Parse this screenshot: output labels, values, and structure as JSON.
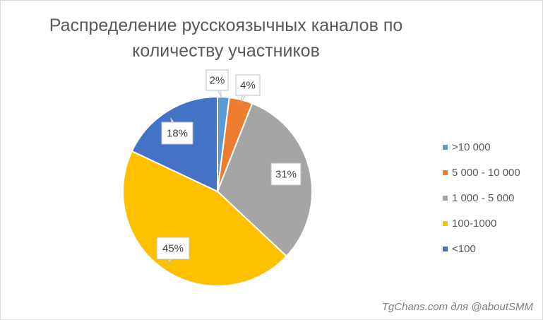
{
  "chart_data": {
    "type": "pie",
    "title_lines": [
      "Распределение русскоязычных каналов по",
      "количеству участников"
    ],
    "categories": [
      ">10 000",
      "5 000 - 10 000",
      "1 000 - 5 000",
      "100-1000",
      "<100"
    ],
    "values": [
      2,
      4,
      31,
      45,
      18
    ],
    "labels": [
      "2%",
      "4%",
      "31%",
      "45%",
      "18%"
    ],
    "colors": [
      "#5B9BD5",
      "#ED7D31",
      "#A5A5A5",
      "#FFC000",
      "#4472C4"
    ],
    "legend_position": "right"
  },
  "credit": "TgChans.com для @aboutSMM"
}
